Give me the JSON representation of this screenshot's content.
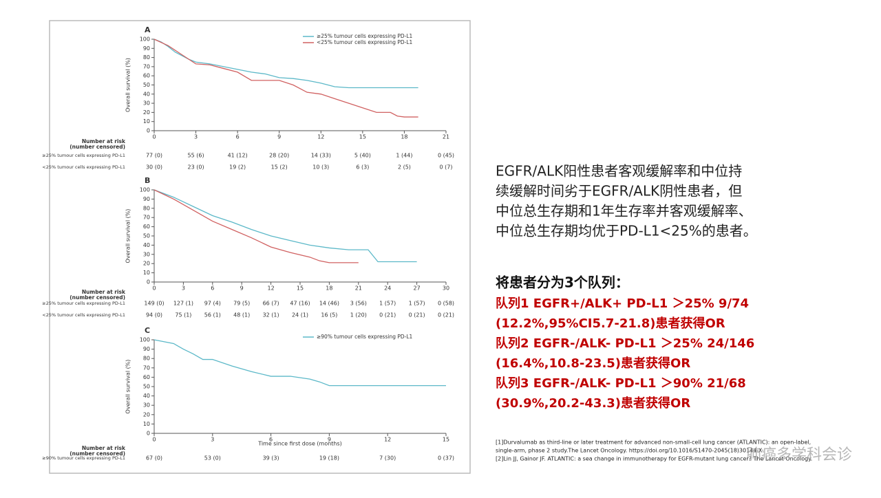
{
  "chart_data": [
    {
      "type": "line",
      "title": "A",
      "y_label": "Overall survival (%)",
      "xlim": [
        0,
        21
      ],
      "xticks": [
        0,
        3,
        6,
        9,
        12,
        15,
        18,
        21
      ],
      "ylim": [
        0,
        100
      ],
      "yticks": [
        0,
        10,
        20,
        30,
        40,
        50,
        60,
        70,
        80,
        90,
        100
      ],
      "legend": "top-right",
      "series": [
        {
          "name": "≥25% tumour cells expressing PD-L1",
          "color": "#5bb8c8",
          "x": [
            0,
            0.5,
            1,
            1.5,
            2,
            2.5,
            3,
            4,
            5,
            6,
            7,
            8,
            9,
            10,
            11,
            12,
            13,
            14,
            15,
            16,
            17,
            18,
            19
          ],
          "values": [
            100,
            97,
            92,
            86,
            82,
            78,
            75,
            73,
            70,
            67,
            64,
            62,
            58,
            57,
            55,
            52,
            48,
            47,
            47,
            47,
            47,
            47,
            47
          ]
        },
        {
          "name": "<25% tumour cells expressing PD-L1",
          "color": "#d06060",
          "x": [
            0,
            1,
            2,
            3,
            4,
            5,
            6,
            7,
            8,
            9,
            10,
            11,
            12,
            13,
            14,
            15,
            16,
            17,
            17.5,
            18,
            19
          ],
          "values": [
            100,
            93,
            83,
            73,
            72,
            68,
            64,
            55,
            55,
            55,
            50,
            42,
            40,
            35,
            30,
            25,
            20,
            20,
            16,
            15,
            15
          ]
        }
      ],
      "risk_table": {
        "title": [
          "Number at risk",
          "(number censored)"
        ],
        "rows": [
          {
            "label": "≥25% tumour cells expressing PD-L1",
            "values": [
              "77 (0)",
              "55 (6)",
              "41 (12)",
              "28 (20)",
              "14 (33)",
              "5 (40)",
              "1 (44)",
              "0 (45)"
            ]
          },
          {
            "label": "<25% tumour cells expressing PD-L1",
            "values": [
              "30 (0)",
              "23 (0)",
              "19 (2)",
              "15 (2)",
              "10 (3)",
              "6 (3)",
              "2 (5)",
              "0 (7)"
            ]
          }
        ]
      }
    },
    {
      "type": "line",
      "title": "B",
      "y_label": "Overall survival (%)",
      "xlim": [
        0,
        30
      ],
      "xticks": [
        0,
        3,
        6,
        9,
        12,
        15,
        18,
        21,
        24,
        27,
        30
      ],
      "ylim": [
        0,
        100
      ],
      "yticks": [
        0,
        10,
        20,
        30,
        40,
        50,
        60,
        70,
        80,
        90,
        100
      ],
      "series": [
        {
          "color": "#5bb8c8",
          "x": [
            0,
            2,
            4,
            6,
            8,
            10,
            12,
            14,
            16,
            18,
            20,
            22,
            23,
            27
          ],
          "values": [
            100,
            92,
            82,
            72,
            65,
            57,
            50,
            45,
            40,
            37,
            35,
            35,
            22,
            22
          ]
        },
        {
          "color": "#d06060",
          "x": [
            0,
            2,
            4,
            6,
            8,
            10,
            12,
            14,
            16,
            17,
            18,
            21
          ],
          "values": [
            100,
            90,
            78,
            66,
            57,
            48,
            38,
            32,
            27,
            23,
            21,
            21
          ]
        }
      ],
      "risk_table": {
        "title": [
          "Number at risk",
          "(number censored)"
        ],
        "rows": [
          {
            "label": "≥25% tumour cells expressing PD-L1",
            "values": [
              "149 (0)",
              "127 (1)",
              "97 (4)",
              "79 (5)",
              "66 (7)",
              "47 (16)",
              "14 (46)",
              "3 (56)",
              "1 (57)",
              "1 (57)",
              "0 (58)"
            ]
          },
          {
            "label": "<25% tumour cells expressing PD-L1",
            "values": [
              "94 (0)",
              "75 (1)",
              "56 (1)",
              "48 (1)",
              "32 (1)",
              "24 (1)",
              "16 (5)",
              "1 (20)",
              "0 (21)",
              "0 (21)",
              "0 (21)"
            ]
          }
        ]
      }
    },
    {
      "type": "line",
      "title": "C",
      "y_label": "Overall survival (%)",
      "x_label": "Time since first dose (months)",
      "xlim": [
        0,
        15
      ],
      "xticks": [
        0,
        3,
        6,
        9,
        12,
        15
      ],
      "ylim": [
        0,
        100
      ],
      "yticks": [
        0,
        10,
        20,
        30,
        40,
        50,
        60,
        70,
        80,
        90,
        100
      ],
      "legend": "top-right",
      "series": [
        {
          "name": "≥90% tumour cells expressing PD-L1",
          "color": "#5bb8c8",
          "x": [
            0,
            1,
            1.5,
            2,
            2.5,
            3,
            4,
            5,
            6,
            7,
            8,
            8.5,
            9,
            15
          ],
          "values": [
            100,
            96,
            90,
            85,
            79,
            79,
            72,
            66,
            61,
            61,
            58,
            55,
            51,
            51
          ]
        }
      ],
      "risk_table": {
        "title": [
          "Number at risk",
          "(number censored)"
        ],
        "rows": [
          {
            "label": "≥90% tumour cells expressing PD-L1",
            "values": [
              "67 (0)",
              "53 (0)",
              "39 (3)",
              "19 (18)",
              "7 (30)",
              "0 (37)"
            ]
          }
        ]
      }
    }
  ],
  "summary": [
    "EGFR/ALK阳性患者客观缓解率和中位持",
    "续缓解时间劣于EGFR/ALK阴性患者，但",
    "中位总生存期和1年生存率并客观缓解率、",
    "中位总生存期均优于PD-L1<25%的患者。"
  ],
  "cohort_heading": "将患者分为3个队列：",
  "cohorts": [
    "队列1   EGFR+/ALK+   PD-L1 ＞25%    9/74",
    "(12.2%,95%CI5.7-21.8)患者获得OR",
    "队列2   EGFR-/ALK-    PD-L1 ＞25%    24/146",
    "(16.4%,10.8-23.5)患者获得OR",
    "队列3   EGFR-/ALK-    PD-L1 ＞90%    21/68",
    "(30.9%,20.2-43.3)患者获得OR"
  ],
  "references": [
    "[1]Durvalumab as third-line or later treatment for advanced non-small-cell lung cancer (ATLANTIC): an open-label,",
    "single-arm, phase 2 study.The Lancet Oncology. https://doi.org/10.1016/S1470-2045(18)30144-X",
    "[2]Lin JJ, Gainor JF. ATLANTIC: a sea change in immunotherapy for EGFR-mutant lung cancer? The Lancet Oncology."
  ],
  "watermark": "肺癌多学科会诊"
}
